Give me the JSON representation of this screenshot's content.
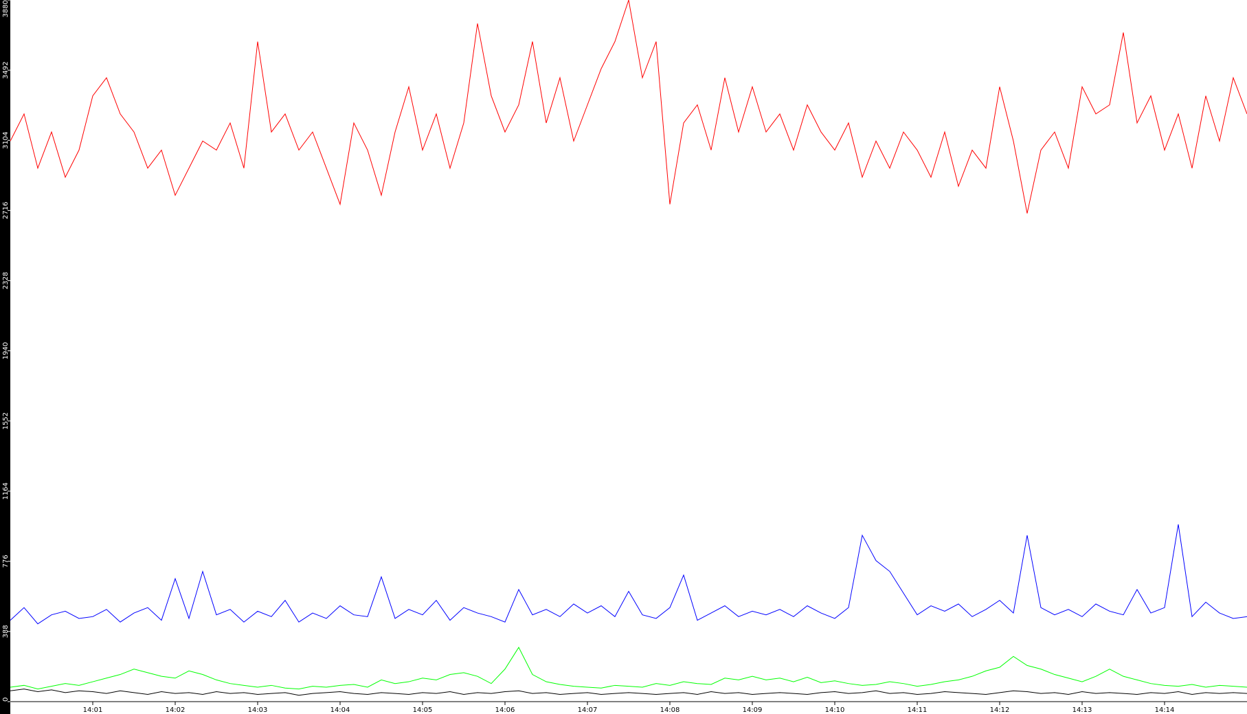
{
  "chart_data": {
    "type": "line",
    "x": [
      0,
      10,
      20,
      30,
      40,
      50,
      60,
      70,
      80,
      90,
      100,
      110,
      120,
      130,
      140,
      150,
      160,
      170,
      180,
      190,
      200,
      210,
      220,
      230,
      240,
      250,
      260,
      270,
      280,
      290,
      300,
      310,
      320,
      330,
      340,
      350,
      360,
      370,
      380,
      390,
      400,
      410,
      420,
      430,
      440,
      450,
      460,
      470,
      480,
      490,
      500,
      510,
      520,
      530,
      540,
      550,
      560,
      570,
      580,
      590,
      600,
      610,
      620,
      630,
      640,
      650,
      660,
      670,
      680,
      690,
      700,
      710,
      720,
      730,
      740,
      750,
      760,
      770,
      780,
      790,
      800,
      810,
      820,
      830,
      840,
      850,
      860,
      870,
      880,
      890,
      900
    ],
    "series": [
      {
        "name": "red",
        "color": "#ff0000",
        "values": [
          3100,
          3250,
          2950,
          3150,
          2900,
          3050,
          3350,
          3450,
          3250,
          3150,
          2950,
          3050,
          2800,
          2950,
          3100,
          3050,
          3200,
          2950,
          3650,
          3150,
          3250,
          3050,
          3150,
          2950,
          2750,
          3200,
          3050,
          2800,
          3150,
          3400,
          3050,
          3250,
          2950,
          3200,
          3750,
          3350,
          3150,
          3300,
          3650,
          3200,
          3450,
          3100,
          3300,
          3500,
          3650,
          3880,
          3450,
          3650,
          2750,
          3200,
          3300,
          3050,
          3450,
          3150,
          3400,
          3150,
          3250,
          3050,
          3300,
          3150,
          3050,
          3200,
          2900,
          3100,
          2950,
          3150,
          3050,
          2900,
          3150,
          2850,
          3050,
          2950,
          3400,
          3100,
          2700,
          3050,
          3150,
          2950,
          3400,
          3250,
          3300,
          3700,
          3200,
          3350,
          3050,
          3250,
          2950,
          3350,
          3100,
          3450,
          3250
        ]
      },
      {
        "name": "blue",
        "color": "#0000ff",
        "values": [
          450,
          520,
          430,
          480,
          500,
          460,
          470,
          510,
          440,
          490,
          520,
          450,
          680,
          460,
          720,
          480,
          510,
          440,
          500,
          470,
          560,
          440,
          490,
          460,
          530,
          480,
          470,
          690,
          460,
          510,
          480,
          560,
          450,
          520,
          490,
          470,
          440,
          620,
          480,
          510,
          470,
          540,
          490,
          530,
          470,
          610,
          480,
          460,
          520,
          700,
          450,
          490,
          530,
          470,
          500,
          480,
          510,
          470,
          530,
          490,
          460,
          520,
          920,
          780,
          720,
          600,
          480,
          530,
          500,
          540,
          470,
          510,
          560,
          490,
          920,
          520,
          480,
          510,
          470,
          540,
          500,
          480,
          620,
          490,
          520,
          980,
          470,
          550,
          490,
          460,
          470
        ]
      },
      {
        "name": "green",
        "color": "#00ff00",
        "values": [
          80,
          90,
          70,
          85,
          100,
          90,
          110,
          130,
          150,
          180,
          160,
          140,
          130,
          170,
          150,
          120,
          100,
          90,
          80,
          90,
          75,
          70,
          85,
          80,
          90,
          95,
          80,
          120,
          100,
          110,
          130,
          120,
          150,
          160,
          140,
          100,
          180,
          300,
          150,
          110,
          95,
          85,
          80,
          75,
          90,
          85,
          80,
          100,
          90,
          110,
          100,
          95,
          130,
          120,
          140,
          120,
          130,
          110,
          135,
          105,
          115,
          100,
          90,
          95,
          110,
          100,
          85,
          95,
          110,
          120,
          140,
          170,
          190,
          250,
          200,
          180,
          150,
          130,
          110,
          140,
          180,
          140,
          120,
          100,
          90,
          85,
          95,
          80,
          90,
          85,
          80
        ]
      },
      {
        "name": "black",
        "color": "#000000",
        "values": [
          60,
          70,
          55,
          65,
          50,
          60,
          55,
          45,
          60,
          50,
          40,
          55,
          45,
          50,
          40,
          55,
          45,
          50,
          40,
          45,
          50,
          35,
          45,
          50,
          55,
          45,
          40,
          50,
          45,
          40,
          50,
          45,
          55,
          40,
          50,
          45,
          55,
          60,
          45,
          50,
          40,
          45,
          50,
          40,
          45,
          50,
          45,
          40,
          45,
          50,
          40,
          55,
          45,
          50,
          40,
          45,
          50,
          45,
          40,
          50,
          55,
          45,
          50,
          60,
          45,
          50,
          40,
          45,
          55,
          50,
          45,
          40,
          50,
          60,
          55,
          45,
          50,
          40,
          55,
          45,
          50,
          45,
          40,
          50,
          45,
          55,
          40,
          50,
          45,
          50,
          45
        ]
      }
    ],
    "xlim": [
      0,
      900
    ],
    "xticks": [
      {
        "value": 60,
        "label": "14:01"
      },
      {
        "value": 120,
        "label": "14:02"
      },
      {
        "value": 180,
        "label": "14:03"
      },
      {
        "value": 240,
        "label": "14:04"
      },
      {
        "value": 300,
        "label": "14:05"
      },
      {
        "value": 360,
        "label": "14:06"
      },
      {
        "value": 420,
        "label": "14:07"
      },
      {
        "value": 480,
        "label": "14:08"
      },
      {
        "value": 540,
        "label": "14:09"
      },
      {
        "value": 600,
        "label": "14:10"
      },
      {
        "value": 660,
        "label": "14:11"
      },
      {
        "value": 720,
        "label": "14:12"
      },
      {
        "value": 780,
        "label": "14:13"
      },
      {
        "value": 840,
        "label": "14:14"
      }
    ],
    "ylim": [
      0,
      3880
    ],
    "yticks": [
      0,
      388,
      776,
      1164,
      1552,
      1940,
      2328,
      2716,
      3104,
      3492,
      3880
    ],
    "grid": false
  }
}
